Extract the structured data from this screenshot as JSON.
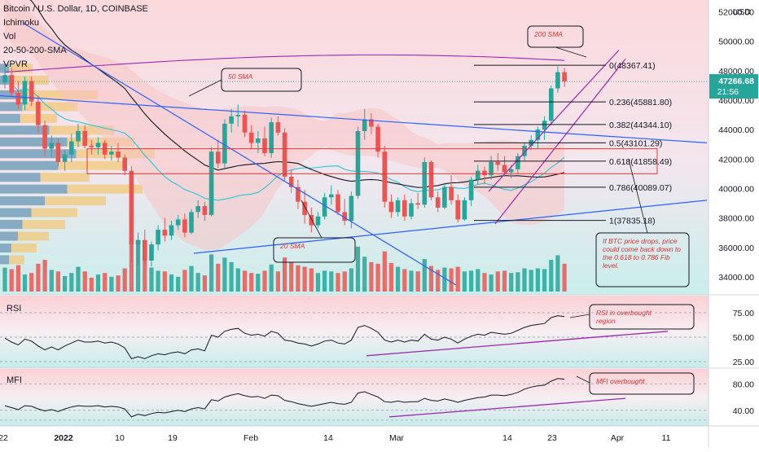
{
  "legend": {
    "symbol": "Bitcoin / U.S. Dollar, 1D, COINBASE",
    "indicators": [
      "Ichimoku",
      "Vol",
      "20-50-200-SMA",
      "VPVR"
    ]
  },
  "price_scale": {
    "unit": "USD",
    "ticks": [
      "52000.00",
      "50000.00",
      "48000.00",
      "46000.00",
      "44000.00",
      "42000.00",
      "40000.00",
      "38000.00",
      "36000.00",
      "34000.00"
    ],
    "last_price": "47266.68",
    "countdown": "21:56"
  },
  "rsi_scale": {
    "title": "RSI",
    "ticks": [
      "75.00",
      "50.00",
      "25.00"
    ]
  },
  "mfi_scale": {
    "title": "MFI",
    "ticks": [
      "80.00",
      "40.00"
    ]
  },
  "time_axis": {
    "labels": [
      "22",
      "2022",
      "10",
      "19",
      "Feb",
      "14",
      "Mar",
      "14",
      "23",
      "Apr",
      "11"
    ]
  },
  "fib_levels": [
    {
      "label": "0(48367.41)",
      "value": 48367.41
    },
    {
      "label": "0.236(45881.80)",
      "value": 45881.8
    },
    {
      "label": "0.382(44344.10)",
      "value": 44344.1
    },
    {
      "label": "0.5(43101.29)",
      "value": 43101.29
    },
    {
      "label": "0.618(41858.49)",
      "value": 41858.49
    },
    {
      "label": "0.786(40089.07)",
      "value": 40089.07
    },
    {
      "label": "1(37835.18)",
      "value": 37835.18
    }
  ],
  "annotations": {
    "sma200": "200 SMA",
    "sma50": "50 SMA",
    "sma20": "20 SMA",
    "fib_note": "If BTC price drops, price could come back down to the 0.618 to 0.786 Fib level.",
    "rsi_note": "RSI in overbought region",
    "mfi_note": "MFI overbought"
  },
  "colors": {
    "up": "#26a69a",
    "down": "#ef5350",
    "sma20": "#26c6da",
    "sma50": "#131722",
    "sma200": "#9c27b0",
    "trend": "#2962ff",
    "channel": "#9c27b0",
    "kumo_bear": "#f8c4c4",
    "kumo_bull": "#b8e6e2"
  },
  "chart_data": {
    "type": "candlestick",
    "ylim": [
      33000,
      52800
    ],
    "candles": [
      [
        47200,
        48300,
        46800,
        47700
      ],
      [
        47700,
        48200,
        46200,
        46500
      ],
      [
        46500,
        47300,
        45400,
        45700
      ],
      [
        45700,
        47600,
        45300,
        47300
      ],
      [
        47300,
        47600,
        45600,
        45900
      ],
      [
        45900,
        46300,
        43800,
        44300
      ],
      [
        44300,
        44600,
        42200,
        42700
      ],
      [
        42700,
        43600,
        42100,
        43100
      ],
      [
        43100,
        43400,
        41500,
        41800
      ],
      [
        41800,
        42600,
        41200,
        42300
      ],
      [
        42300,
        43700,
        41800,
        43200
      ],
      [
        43200,
        44400,
        42800,
        43900
      ],
      [
        43900,
        44300,
        42700,
        42900
      ],
      [
        42900,
        43300,
        42300,
        42800
      ],
      [
        42800,
        43500,
        42300,
        43100
      ],
      [
        43100,
        43300,
        42000,
        42300
      ],
      [
        42300,
        42900,
        41900,
        42500
      ],
      [
        42500,
        43100,
        41800,
        42100
      ],
      [
        42100,
        42300,
        40900,
        41200
      ],
      [
        41200,
        41500,
        35000,
        36200
      ],
      [
        36200,
        37000,
        34800,
        36500
      ],
      [
        36500,
        37200,
        34900,
        35100
      ],
      [
        35100,
        36400,
        34700,
        36200
      ],
      [
        36200,
        37500,
        35800,
        37200
      ],
      [
        37200,
        38000,
        36400,
        36800
      ],
      [
        36800,
        37800,
        36500,
        37500
      ],
      [
        37500,
        38200,
        37200,
        37900
      ],
      [
        37900,
        38300,
        36700,
        37000
      ],
      [
        37000,
        38600,
        36900,
        38400
      ],
      [
        38400,
        39200,
        38000,
        38800
      ],
      [
        38800,
        39100,
        37800,
        38200
      ],
      [
        38200,
        42800,
        38100,
        42500
      ],
      [
        42500,
        43300,
        41400,
        41700
      ],
      [
        41700,
        44700,
        41400,
        44400
      ],
      [
        44400,
        45400,
        43800,
        44900
      ],
      [
        44900,
        45700,
        44200,
        45000
      ],
      [
        45000,
        45300,
        43500,
        43800
      ],
      [
        43800,
        44300,
        42700,
        43100
      ],
      [
        43100,
        43900,
        42400,
        43400
      ],
      [
        43400,
        44200,
        42200,
        42400
      ],
      [
        42400,
        44800,
        42100,
        44500
      ],
      [
        44500,
        44900,
        43600,
        43800
      ],
      [
        43800,
        44100,
        40500,
        40800
      ],
      [
        40800,
        41300,
        39700,
        40100
      ],
      [
        40100,
        40600,
        38600,
        39100
      ],
      [
        39100,
        39900,
        37600,
        38200
      ],
      [
        38200,
        38700,
        37000,
        37500
      ],
      [
        37500,
        38400,
        37300,
        38100
      ],
      [
        38100,
        39700,
        37900,
        39400
      ],
      [
        39400,
        40200,
        38900,
        39600
      ],
      [
        39600,
        39900,
        38200,
        38400
      ],
      [
        38400,
        39300,
        37500,
        37800
      ],
      [
        37800,
        39800,
        37300,
        39500
      ],
      [
        39500,
        44200,
        39300,
        43900
      ],
      [
        43900,
        45400,
        43300,
        44700
      ],
      [
        44700,
        45100,
        43700,
        44200
      ],
      [
        44200,
        44400,
        42100,
        42500
      ],
      [
        42500,
        42900,
        38700,
        39100
      ],
      [
        39100,
        39600,
        38000,
        38400
      ],
      [
        38400,
        39400,
        38100,
        39200
      ],
      [
        39200,
        39600,
        37800,
        38100
      ],
      [
        38100,
        39300,
        37900,
        39000
      ],
      [
        39000,
        39700,
        38600,
        38900
      ],
      [
        38900,
        42100,
        38700,
        41800
      ],
      [
        41800,
        41900,
        39200,
        39400
      ],
      [
        39400,
        39800,
        38400,
        38700
      ],
      [
        38700,
        40400,
        38600,
        40100
      ],
      [
        40100,
        40900,
        38900,
        39200
      ],
      [
        39200,
        39600,
        37700,
        37900
      ],
      [
        37900,
        39400,
        37800,
        39200
      ],
      [
        39200,
        40800,
        38800,
        40600
      ],
      [
        40600,
        41600,
        40300,
        41200
      ],
      [
        41200,
        41500,
        40300,
        40900
      ],
      [
        40900,
        42200,
        40600,
        41800
      ],
      [
        41800,
        42400,
        41200,
        41600
      ],
      [
        41600,
        42200,
        40800,
        41100
      ],
      [
        41100,
        41600,
        40700,
        41300
      ],
      [
        41300,
        42400,
        41000,
        42200
      ],
      [
        42200,
        43100,
        41900,
        42900
      ],
      [
        42900,
        43600,
        42600,
        43300
      ],
      [
        43300,
        44200,
        42700,
        44000
      ],
      [
        44000,
        44900,
        43300,
        44600
      ],
      [
        44600,
        47000,
        44300,
        46800
      ],
      [
        46800,
        48300,
        46500,
        47900
      ],
      [
        47900,
        48200,
        46900,
        47267
      ]
    ],
    "volumes": [
      31,
      29,
      34,
      22,
      24,
      36,
      41,
      28,
      26,
      20,
      24,
      32,
      26,
      18,
      22,
      24,
      19,
      21,
      30,
      70,
      64,
      42,
      31,
      27,
      26,
      22,
      19,
      28,
      33,
      24,
      21,
      48,
      36,
      44,
      38,
      30,
      27,
      24,
      23,
      27,
      35,
      26,
      44,
      38,
      34,
      32,
      30,
      24,
      27,
      26,
      24,
      26,
      30,
      58,
      45,
      38,
      36,
      52,
      37,
      32,
      29,
      27,
      26,
      42,
      33,
      28,
      31,
      30,
      32,
      26,
      27,
      29,
      24,
      22,
      26,
      27,
      24,
      25,
      30,
      28,
      30,
      29,
      41,
      47,
      36
    ],
    "rsi": [
      49,
      45,
      42,
      48,
      46,
      41,
      37,
      40,
      37,
      41,
      44,
      47,
      45,
      45,
      46,
      44,
      45,
      43,
      39,
      28,
      30,
      28,
      31,
      33,
      32,
      34,
      35,
      33,
      37,
      38,
      36,
      52,
      50,
      56,
      58,
      59,
      54,
      52,
      53,
      51,
      56,
      54,
      47,
      46,
      44,
      43,
      41,
      43,
      46,
      47,
      44,
      43,
      47,
      60,
      62,
      59,
      55,
      47,
      45,
      47,
      45,
      47,
      46,
      53,
      48,
      47,
      50,
      48,
      44,
      48,
      51,
      53,
      52,
      55,
      54,
      53,
      54,
      57,
      60,
      62,
      63,
      64,
      70,
      72,
      71
    ],
    "mfi": [
      47,
      44,
      41,
      47,
      46,
      42,
      39,
      41,
      38,
      42,
      45,
      47,
      46,
      46,
      47,
      45,
      46,
      45,
      42,
      30,
      34,
      32,
      35,
      37,
      36,
      38,
      40,
      38,
      42,
      44,
      42,
      56,
      54,
      60,
      63,
      65,
      62,
      60,
      61,
      58,
      63,
      62,
      55,
      53,
      50,
      48,
      46,
      48,
      50,
      52,
      50,
      49,
      52,
      66,
      68,
      64,
      60,
      53,
      52,
      54,
      52,
      53,
      53,
      58,
      55,
      54,
      57,
      55,
      52,
      55,
      57,
      59,
      60,
      63,
      63,
      62,
      64,
      67,
      72,
      75,
      77,
      78,
      84,
      88,
      87
    ]
  }
}
